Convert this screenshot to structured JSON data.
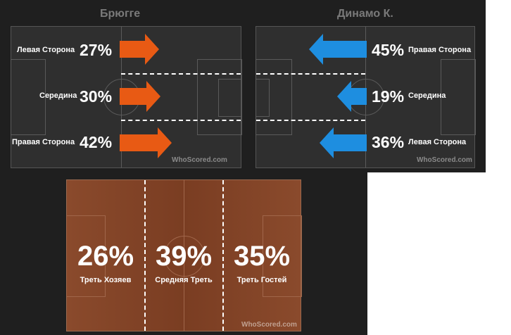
{
  "home": {
    "team": "Брюгге",
    "color": "#e85a14",
    "rows": [
      {
        "label": "Левая Сторона",
        "pct": "27%"
      },
      {
        "label": "Середина",
        "pct": "30%"
      },
      {
        "label": "Правая Сторона",
        "pct": "42%"
      }
    ]
  },
  "away": {
    "team": "Динамо К.",
    "color": "#1e8ee0",
    "rows": [
      {
        "label": "Правая Сторона",
        "pct": "45%"
      },
      {
        "label": "Середина",
        "pct": "19%"
      },
      {
        "label": "Левая Сторона",
        "pct": "36%"
      }
    ]
  },
  "zones": [
    {
      "pct": "26%",
      "label": "Треть Хозяев"
    },
    {
      "pct": "39%",
      "label": "Средняя Треть"
    },
    {
      "pct": "35%",
      "label": "Треть Гостей"
    }
  ],
  "watermark": "WhoScored.com"
}
